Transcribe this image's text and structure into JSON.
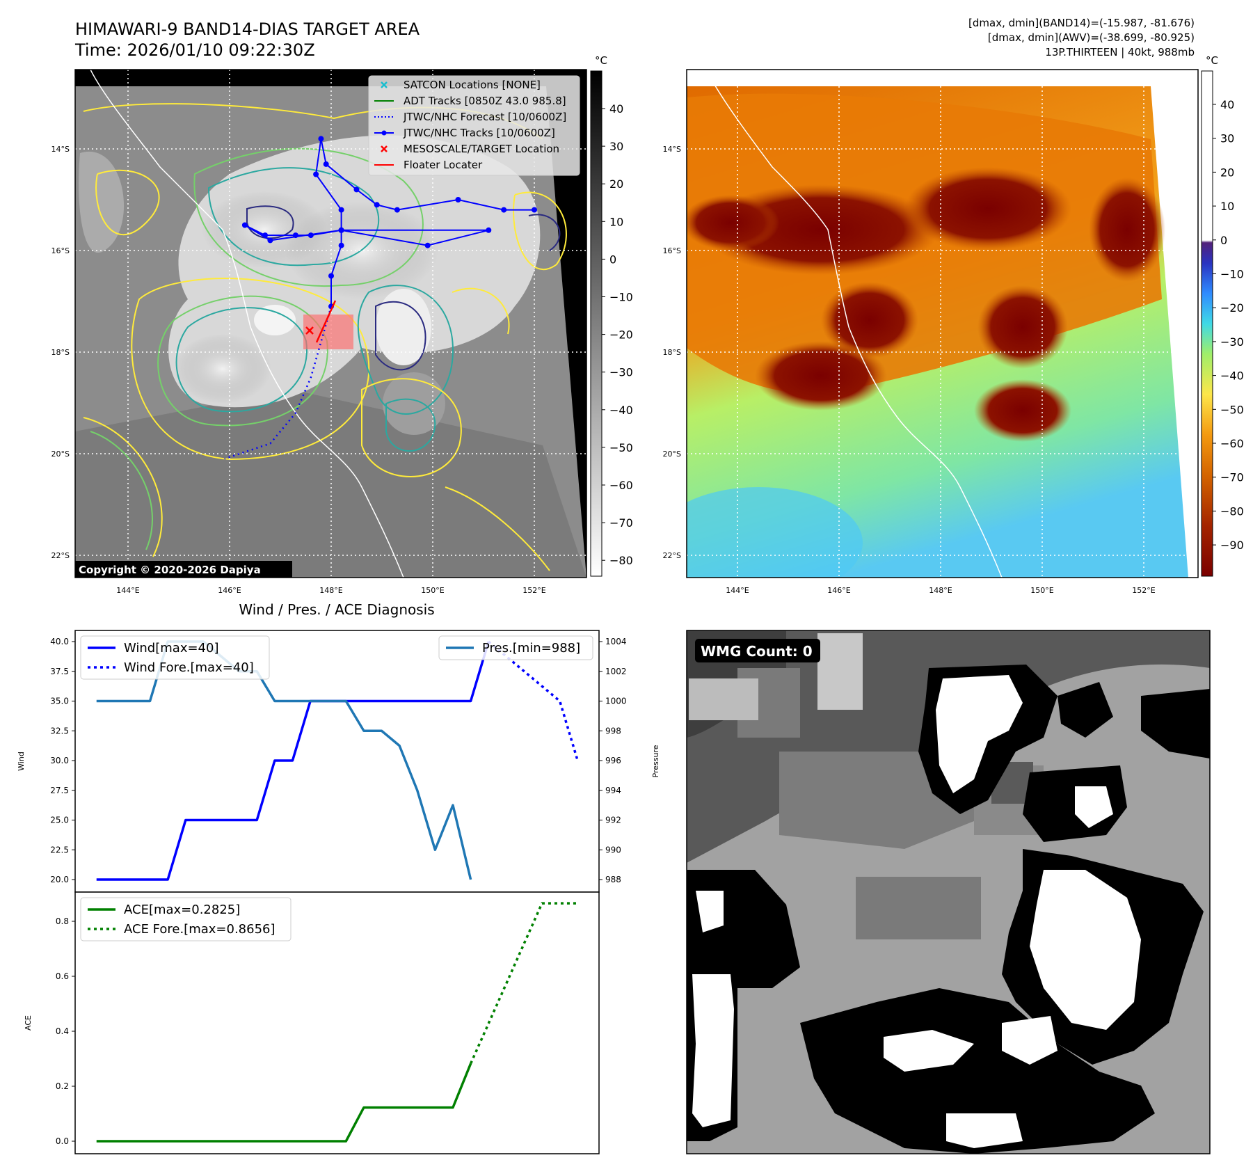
{
  "header": {
    "title": "HIMAWARI-9 BAND14-DIAS TARGET AREA",
    "time": "Time: 2026/01/10 09:22:30Z",
    "info_line1": "[dmax, dmin](BAND14)=(-15.987, -81.676)",
    "info_line2": "[dmax, dmin](AWV)=(-38.699, -80.925)",
    "info_line3": "13P.THIRTEEN | 40kt, 988mb"
  },
  "map": {
    "lon_ticks": [
      "144°E",
      "146°E",
      "148°E",
      "150°E",
      "152°E"
    ],
    "lat_ticks": [
      "14°S",
      "16°S",
      "18°S",
      "20°S",
      "22°S"
    ],
    "copyright": "Copyright © 2020-2026 Dapiya",
    "legend": [
      {
        "label": "SATCON Locations [NONE]",
        "color": "#17becf",
        "kind": "x"
      },
      {
        "label": "ADT Tracks [0850Z 43.0 985.8]",
        "color": "#008000",
        "kind": "line"
      },
      {
        "label": "JTWC/NHC Forecast [10/0600Z]",
        "color": "#0000ff",
        "kind": "dotted"
      },
      {
        "label": "JTWC/NHC Tracks [10/0600Z]",
        "color": "#0000ff",
        "kind": "marker-line"
      },
      {
        "label": "MESOSCALE/TARGET Location",
        "color": "#ff0000",
        "kind": "x"
      },
      {
        "label": "Floater Locater",
        "color": "#ff0000",
        "kind": "line"
      }
    ],
    "track": [
      [
        152.0,
        15.2
      ],
      [
        151.4,
        15.2
      ],
      [
        150.5,
        15.0
      ],
      [
        149.3,
        15.2
      ],
      [
        148.9,
        15.1
      ],
      [
        148.5,
        14.8
      ],
      [
        147.9,
        14.3
      ],
      [
        147.8,
        13.8
      ],
      [
        147.7,
        14.5
      ],
      [
        148.2,
        15.2
      ],
      [
        148.2,
        15.6
      ],
      [
        149.9,
        15.9
      ],
      [
        151.1,
        15.6
      ],
      [
        148.2,
        15.6
      ],
      [
        147.6,
        15.7
      ],
      [
        147.3,
        15.7
      ],
      [
        146.7,
        15.7
      ],
      [
        146.3,
        15.5
      ],
      [
        146.8,
        15.8
      ],
      [
        148.2,
        15.6
      ],
      [
        148.2,
        15.9
      ],
      [
        148.0,
        16.5
      ],
      [
        148.0,
        17.1
      ]
    ],
    "forecast_track": [
      [
        148.0,
        17.1
      ],
      [
        147.8,
        17.8
      ],
      [
        147.6,
        18.5
      ],
      [
        147.3,
        19.2
      ],
      [
        146.8,
        19.8
      ],
      [
        145.9,
        20.1
      ]
    ],
    "target": [
      147.5,
      17.7
    ]
  },
  "colorbars": {
    "left": {
      "unit": "°C",
      "ticks": [
        "40",
        "30",
        "20",
        "10",
        "0",
        "−10",
        "−20",
        "−30",
        "−40",
        "−50",
        "−60",
        "−70",
        "−80"
      ]
    },
    "right": {
      "unit": "°C",
      "ticks": [
        "40",
        "30",
        "20",
        "10",
        "0",
        "−10",
        "−20",
        "−30",
        "−40",
        "−50",
        "−60",
        "−70",
        "−80",
        "−90"
      ]
    }
  },
  "diagnosis": {
    "title": "Wind / Pres. / ACE Diagnosis",
    "wind_axis_label": "Wind",
    "pressure_axis_label": "Pressure",
    "ace_axis_label": "ACE",
    "legend_wind": "Wind[max=40]",
    "legend_wind_fore": "Wind Fore.[max=40]",
    "legend_pres": "Pres.[min=988]",
    "legend_ace": "ACE[max=0.2825]",
    "legend_ace_fore": "ACE Fore.[max=0.8656]",
    "wind_ticks": [
      "40.0",
      "37.5",
      "35.0",
      "32.5",
      "30.0",
      "27.5",
      "25.0",
      "22.5",
      "20.0"
    ],
    "pressure_ticks": [
      "1004",
      "1002",
      "1000",
      "998",
      "996",
      "994",
      "992",
      "990",
      "988"
    ],
    "ace_ticks": [
      "0.8",
      "0.6",
      "0.4",
      "0.2",
      "0.0"
    ]
  },
  "chart_data": [
    {
      "type": "line",
      "title": "Wind / Pres. / ACE Diagnosis",
      "ylabel": "Wind",
      "y2label": "Pressure",
      "ylim": [
        20,
        40
      ],
      "y2lim": [
        988,
        1004
      ],
      "series": [
        {
          "name": "Wind[max=40]",
          "axis": "left",
          "color": "#0000ff",
          "style": "solid",
          "x": [
            0,
            4,
            5,
            9,
            10,
            11,
            12,
            21,
            22
          ],
          "y": [
            20,
            20,
            25,
            25,
            30,
            30,
            35,
            35,
            40
          ]
        },
        {
          "name": "Wind Fore.[max=40]",
          "axis": "left",
          "color": "#0000ff",
          "style": "dotted",
          "x": [
            22,
            26,
            27
          ],
          "y": [
            40,
            35,
            30
          ]
        },
        {
          "name": "Pres.[min=988]",
          "axis": "right",
          "color": "#1f77b4",
          "style": "solid",
          "x": [
            0,
            3,
            4,
            6,
            8,
            9,
            10,
            11,
            12,
            14,
            15,
            16,
            17,
            18,
            19,
            20,
            21
          ],
          "y": [
            1000,
            1000,
            1004,
            1004,
            1002,
            1002,
            1000,
            1000,
            1000,
            1000,
            998,
            998,
            997,
            994,
            990,
            993,
            988
          ]
        }
      ]
    },
    {
      "type": "line",
      "ylabel": "ACE",
      "ylim": [
        -0.04,
        0.92
      ],
      "series": [
        {
          "name": "ACE[max=0.2825]",
          "color": "#008000",
          "style": "solid",
          "x": [
            0,
            14,
            15,
            20,
            21
          ],
          "y": [
            0.0,
            0.0,
            0.1225,
            0.1225,
            0.2825
          ]
        },
        {
          "name": "ACE Fore.[max=0.8656]",
          "color": "#008000",
          "style": "dotted",
          "x": [
            21,
            25,
            27
          ],
          "y": [
            0.2825,
            0.8656,
            0.8656
          ]
        }
      ]
    }
  ],
  "wmg": {
    "label": "WMG Count: 0"
  }
}
